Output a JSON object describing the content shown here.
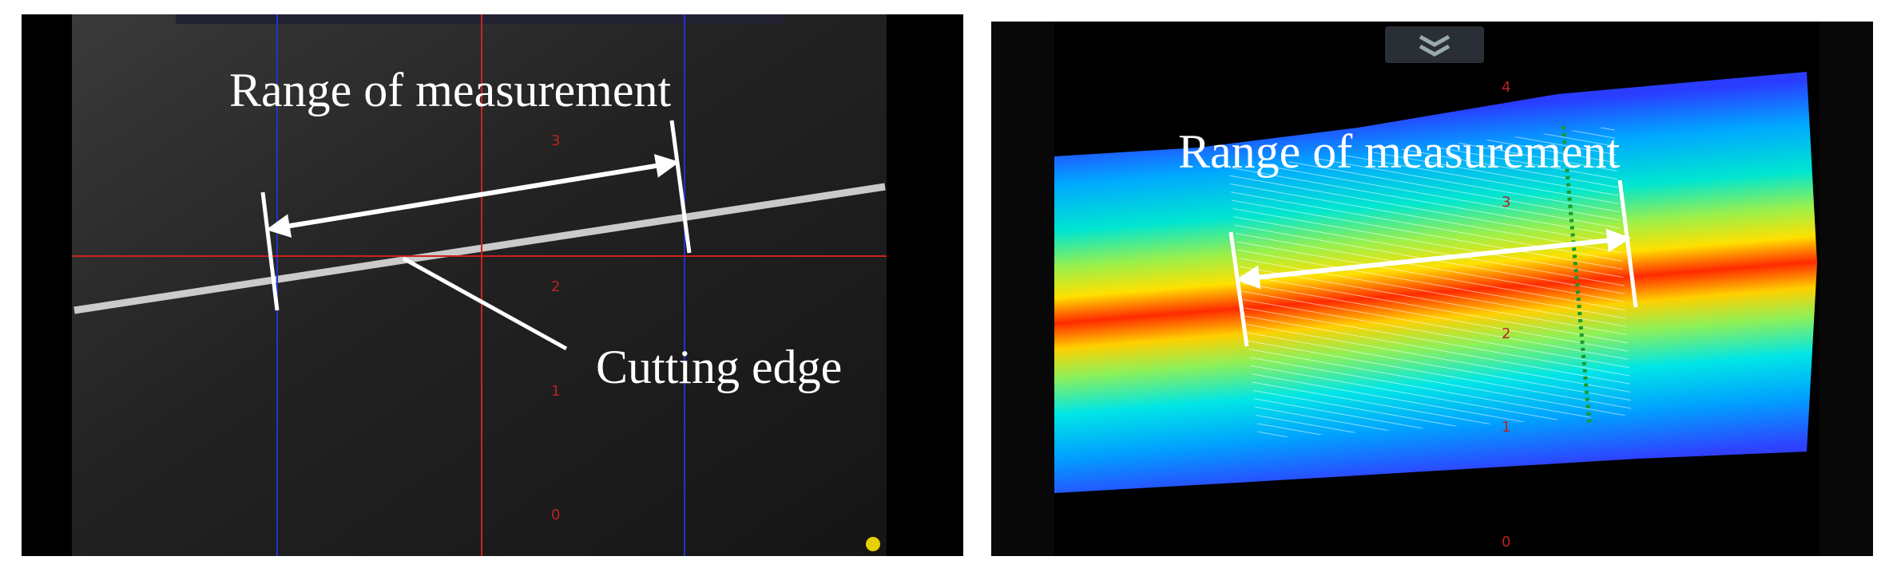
{
  "left_panel": {
    "annotations": [
      "Range of measurement",
      "Cutting edge"
    ],
    "scale_labels": [
      "3",
      "2",
      "1",
      "0"
    ]
  },
  "right_panel": {
    "annotation": "Range of measurement",
    "scale_labels": [
      "4",
      "3",
      "2",
      "1",
      "0"
    ]
  }
}
